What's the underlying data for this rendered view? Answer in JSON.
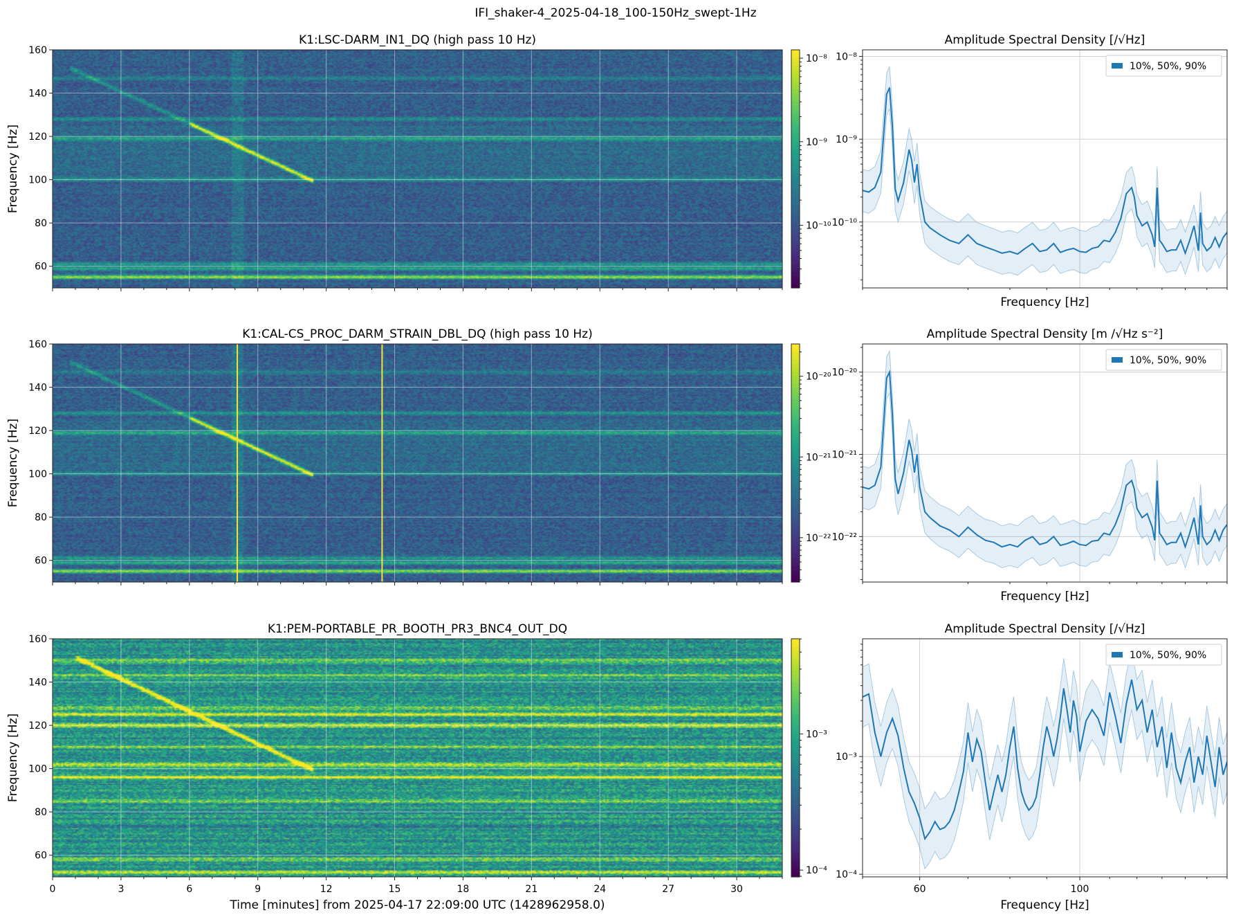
{
  "figure": {
    "title": "IFI_shaker-4_2025-04-18_100-150Hz_swept-1Hz"
  },
  "chart_data": [
    {
      "type": "heatmap",
      "title": "K1:LSC-DARM_IN1_DQ (high pass 10 Hz)",
      "xlabel": "",
      "ylabel": "Frequency [Hz]",
      "xlim": [
        0,
        32
      ],
      "ylim": [
        50,
        160
      ],
      "yticks": [
        60,
        80,
        100,
        120,
        140,
        160
      ],
      "xticks": [
        0,
        3,
        6,
        9,
        12,
        15,
        18,
        21,
        24,
        27,
        30
      ],
      "show_xtick_labels": false,
      "colormap": "viridis",
      "colorbar": {
        "scale": "log",
        "ticks": [
          "10⁻⁸",
          "10⁻⁹",
          "10⁻¹⁰"
        ],
        "tick_exponents": [
          -8,
          -9,
          -10
        ],
        "range_exponents": [
          -10.75,
          -7.9
        ]
      },
      "features": {
        "sweep": {
          "t_start": 0.9,
          "f_start": 151,
          "t_end": 11.3,
          "f_end": 100,
          "bright_from_t": 6.0
        },
        "lines_hz": [
          {
            "f": 55,
            "level": 1.0
          },
          {
            "f": 59,
            "level": 0.55
          },
          {
            "f": 61,
            "level": 0.45
          },
          {
            "f": 119,
            "level": 0.45
          },
          {
            "f": 128,
            "level": 0.4
          },
          {
            "f": 100,
            "level": 0.3
          },
          {
            "f": 147,
            "level": 0.25
          }
        ],
        "vertical_lines_min": []
      }
    },
    {
      "type": "heatmap",
      "title": "K1:CAL-CS_PROC_DARM_STRAIN_DBL_DQ (high pass 10 Hz)",
      "xlabel": "",
      "ylabel": "Frequency [Hz]",
      "xlim": [
        0,
        32
      ],
      "ylim": [
        50,
        160
      ],
      "yticks": [
        60,
        80,
        100,
        120,
        140,
        160
      ],
      "xticks": [
        0,
        3,
        6,
        9,
        12,
        15,
        18,
        21,
        24,
        27,
        30
      ],
      "show_xtick_labels": false,
      "colormap": "viridis",
      "colorbar": {
        "scale": "log",
        "ticks": [
          "10⁻²⁰",
          "10⁻²¹",
          "10⁻²²"
        ],
        "tick_exponents": [
          -20,
          -21,
          -22
        ],
        "range_exponents": [
          -22.55,
          -19.6
        ]
      },
      "features": {
        "sweep": {
          "t_start": 0.9,
          "f_start": 151,
          "t_end": 11.3,
          "f_end": 100,
          "bright_from_t": 6.0
        },
        "lines_hz": [
          {
            "f": 55,
            "level": 1.0
          },
          {
            "f": 59,
            "level": 0.55
          },
          {
            "f": 61,
            "level": 0.45
          },
          {
            "f": 119,
            "level": 0.45
          },
          {
            "f": 128,
            "level": 0.4
          },
          {
            "f": 100,
            "level": 0.3
          },
          {
            "f": 147,
            "level": 0.25
          }
        ],
        "vertical_lines_min": [
          8.1,
          14.45
        ]
      }
    },
    {
      "type": "heatmap",
      "title": "K1:PEM-PORTABLE_PR_BOOTH_PR3_BNC4_OUT_DQ",
      "xlabel": "Time [minutes] from 2025-04-17 22:09:00 UTC (1428962958.0)",
      "ylabel": "Frequency [Hz]",
      "xlim": [
        0,
        32
      ],
      "ylim": [
        50,
        160
      ],
      "yticks": [
        60,
        80,
        100,
        120,
        140,
        160
      ],
      "xticks": [
        0,
        3,
        6,
        9,
        12,
        15,
        18,
        21,
        24,
        27,
        30
      ],
      "show_xtick_labels": true,
      "colormap": "viridis",
      "colorbar": {
        "scale": "log",
        "ticks": [
          "10⁻³",
          "10⁻⁴"
        ],
        "tick_exponents": [
          -3,
          -4
        ],
        "range_exponents": [
          -4.05,
          -2.3
        ]
      },
      "features": {
        "sweep": {
          "t_start": 1.1,
          "f_start": 151,
          "t_end": 11.3,
          "f_end": 100,
          "bright_from_t": 1.1
        },
        "lines_hz": [
          {
            "f": 52,
            "level": 0.8
          },
          {
            "f": 58,
            "level": 0.6
          },
          {
            "f": 96,
            "level": 0.9
          },
          {
            "f": 102,
            "level": 0.7
          },
          {
            "f": 120,
            "level": 0.8
          },
          {
            "f": 125,
            "level": 0.85
          },
          {
            "f": 128,
            "level": 0.6
          },
          {
            "f": 143,
            "level": 0.5
          },
          {
            "f": 110,
            "level": 0.45
          },
          {
            "f": 85,
            "level": 0.4
          },
          {
            "f": 150,
            "level": 0.45
          }
        ],
        "vertical_lines_min": []
      }
    },
    {
      "type": "line",
      "title": "Amplitude Spectral Density [/√Hz]",
      "xlabel": "Frequency [Hz]",
      "ylabel": "",
      "xscale": "log",
      "yscale": "log",
      "xlim": [
        50,
        160
      ],
      "xticks_major": [],
      "ylim": [
        1.6e-11,
        1.2e-08
      ],
      "yticks": [
        1e-10,
        1e-09,
        1e-08
      ],
      "ytick_labels": [
        "10⁻¹⁰",
        "10⁻⁹",
        "10⁻⁸"
      ],
      "legend": {
        "label": "10%, 50%, 90%",
        "loc": "upper right"
      },
      "series": [
        {
          "x": [
            50,
            51,
            52,
            53,
            54,
            54.5,
            55,
            55.5,
            56,
            57,
            58,
            58.5,
            59,
            59.5,
            60,
            61,
            62,
            64,
            66,
            68,
            70,
            72,
            74,
            76,
            78,
            80,
            82,
            84,
            86,
            88,
            90,
            92,
            94,
            96,
            98,
            100,
            102,
            104,
            106,
            108,
            110,
            112,
            114,
            116,
            118,
            119,
            120,
            122,
            124,
            126,
            127,
            128,
            129,
            130,
            132,
            134,
            136,
            138,
            140,
            142,
            144,
            146,
            147,
            148,
            150,
            152,
            154,
            156,
            158,
            160
          ],
          "p50": [
            2.4e-10,
            2.3e-10,
            2.6e-10,
            4e-10,
            3.5e-09,
            4.2e-09,
            1.4e-09,
            2.5e-10,
            1.8e-10,
            3e-10,
            7.5e-10,
            5.5e-10,
            3e-10,
            5e-10,
            2.2e-10,
            1e-10,
            8.5e-11,
            7e-11,
            6e-11,
            5.5e-11,
            7e-11,
            5.5e-11,
            5e-11,
            4.6e-11,
            4.2e-11,
            4.4e-11,
            4.1e-11,
            4.8e-11,
            5.5e-11,
            4.4e-11,
            4.6e-11,
            5.5e-11,
            4.3e-11,
            4.6e-11,
            4.8e-11,
            4.4e-11,
            4.3e-11,
            4.8e-11,
            5e-11,
            6e-11,
            5.8e-11,
            7.5e-11,
            1.1e-10,
            2.2e-10,
            2.6e-10,
            2e-10,
            1.2e-10,
            9e-11,
            1e-10,
            7e-11,
            5e-11,
            2.6e-10,
            6e-11,
            5.5e-11,
            4.4e-11,
            4.6e-11,
            4.6e-11,
            6e-11,
            4.2e-11,
            6e-11,
            9e-11,
            4.5e-11,
            1.3e-10,
            5.5e-11,
            4.5e-11,
            5e-11,
            6.5e-11,
            5e-11,
            6.5e-11,
            7.5e-11
          ]
        }
      ]
    },
    {
      "type": "line",
      "title": "Amplitude Spectral Density [m /√Hz s⁻²]",
      "xlabel": "Frequency [Hz]",
      "ylabel": "",
      "xscale": "log",
      "yscale": "log",
      "xlim": [
        50,
        160
      ],
      "xticks_major": [],
      "ylim": [
        2.8e-23,
        2.2e-20
      ],
      "yticks": [
        1e-22,
        1e-21,
        1e-20
      ],
      "ytick_labels": [
        "10⁻²²",
        "10⁻²¹",
        "10⁻²⁰"
      ],
      "legend": {
        "label": "10%, 50%, 90%",
        "loc": "upper right"
      },
      "series": [
        {
          "x": [
            50,
            51,
            52,
            53,
            54,
            54.5,
            55,
            55.5,
            56,
            57,
            58,
            58.5,
            59,
            59.5,
            60,
            61,
            62,
            64,
            66,
            68,
            70,
            72,
            74,
            76,
            78,
            80,
            82,
            84,
            86,
            88,
            90,
            92,
            94,
            96,
            98,
            100,
            102,
            104,
            106,
            108,
            110,
            112,
            114,
            116,
            118,
            119,
            120,
            122,
            124,
            126,
            127,
            128,
            129,
            130,
            132,
            134,
            136,
            138,
            140,
            142,
            144,
            146,
            147,
            148,
            150,
            152,
            154,
            156,
            158,
            160
          ],
          "p50": [
            4e-22,
            3.8e-22,
            4.2e-22,
            7e-22,
            8.5e-21,
            1e-20,
            3e-21,
            5e-22,
            3.3e-22,
            6e-22,
            1.5e-21,
            1.1e-21,
            6e-22,
            1e-21,
            4e-22,
            2e-22,
            1.7e-22,
            1.35e-22,
            1.2e-22,
            1e-22,
            1.3e-22,
            1.05e-22,
            9e-23,
            8.5e-23,
            7.5e-23,
            8e-23,
            7.5e-23,
            9e-23,
            1e-22,
            8e-23,
            8.5e-23,
            1e-22,
            7.8e-23,
            8.2e-23,
            8.8e-23,
            8e-23,
            7.8e-23,
            8.8e-23,
            9e-23,
            1.1e-22,
            1.05e-22,
            1.4e-22,
            2.1e-22,
            4.2e-22,
            4.8e-22,
            3.8e-22,
            2.2e-22,
            1.7e-22,
            1.9e-22,
            1.3e-22,
            9e-23,
            4.8e-22,
            1.1e-22,
            1e-22,
            8e-23,
            8.5e-23,
            8.5e-23,
            1.1e-22,
            7.5e-23,
            1.1e-22,
            1.7e-22,
            8e-23,
            2.4e-22,
            1e-22,
            8e-23,
            9e-23,
            1.2e-22,
            9e-23,
            1.2e-22,
            1.4e-22
          ]
        }
      ]
    },
    {
      "type": "line",
      "title": "Amplitude Spectral Density [/√Hz]",
      "xlabel": "Frequency [Hz]",
      "ylabel": "",
      "xscale": "log",
      "yscale": "log",
      "xlim": [
        50,
        160
      ],
      "xticks_major": [
        60,
        100
      ],
      "ylim": [
        9.5e-05,
        0.01
      ],
      "yticks": [
        0.0001,
        0.001
      ],
      "ytick_labels": [
        "10⁻⁴",
        "10⁻³"
      ],
      "legend": {
        "label": "10%, 50%, 90%",
        "loc": "upper right"
      },
      "series": [
        {
          "x": [
            50,
            51,
            52,
            53,
            54,
            55,
            56,
            57,
            58,
            59,
            60,
            61,
            62,
            63,
            64,
            65,
            66,
            67,
            68,
            69,
            70,
            71,
            72,
            73,
            74,
            75,
            76,
            77,
            78,
            79,
            80,
            81,
            82,
            83,
            84,
            85,
            86,
            87,
            88,
            89,
            90,
            91,
            92,
            93,
            94,
            95,
            96,
            97,
            98,
            99,
            100,
            102,
            104,
            106,
            108,
            110,
            112,
            114,
            116,
            118,
            120,
            122,
            124,
            126,
            128,
            130,
            132,
            134,
            136,
            138,
            140,
            142,
            144,
            146,
            148,
            150,
            152,
            154,
            156,
            158,
            160
          ],
          "p50": [
            0.0032,
            0.0034,
            0.0016,
            0.001,
            0.0016,
            0.0021,
            0.0015,
            0.0008,
            0.0005,
            0.0004,
            0.0003,
            0.0002,
            0.00023,
            0.00028,
            0.00024,
            0.00025,
            0.00028,
            0.00035,
            0.0005,
            0.00075,
            0.0016,
            0.0009,
            0.0014,
            0.0011,
            0.0006,
            0.00035,
            0.0005,
            0.0007,
            0.0005,
            0.0007,
            0.0012,
            0.0018,
            0.0008,
            0.0005,
            0.0004,
            0.00035,
            0.00038,
            0.00045,
            0.0007,
            0.0012,
            0.0018,
            0.0014,
            0.001,
            0.0014,
            0.0022,
            0.0038,
            0.0025,
            0.0016,
            0.003,
            0.0022,
            0.0011,
            0.002,
            0.0025,
            0.0021,
            0.0015,
            0.0035,
            0.0022,
            0.0013,
            0.0028,
            0.0045,
            0.0025,
            0.003,
            0.0016,
            0.0025,
            0.0012,
            0.0018,
            0.0008,
            0.0016,
            0.0008,
            0.0006,
            0.0009,
            0.0012,
            0.0006,
            0.001,
            0.0007,
            0.0015,
            0.0009,
            0.00055,
            0.0012,
            0.0007,
            0.0009
          ]
        }
      ]
    }
  ]
}
